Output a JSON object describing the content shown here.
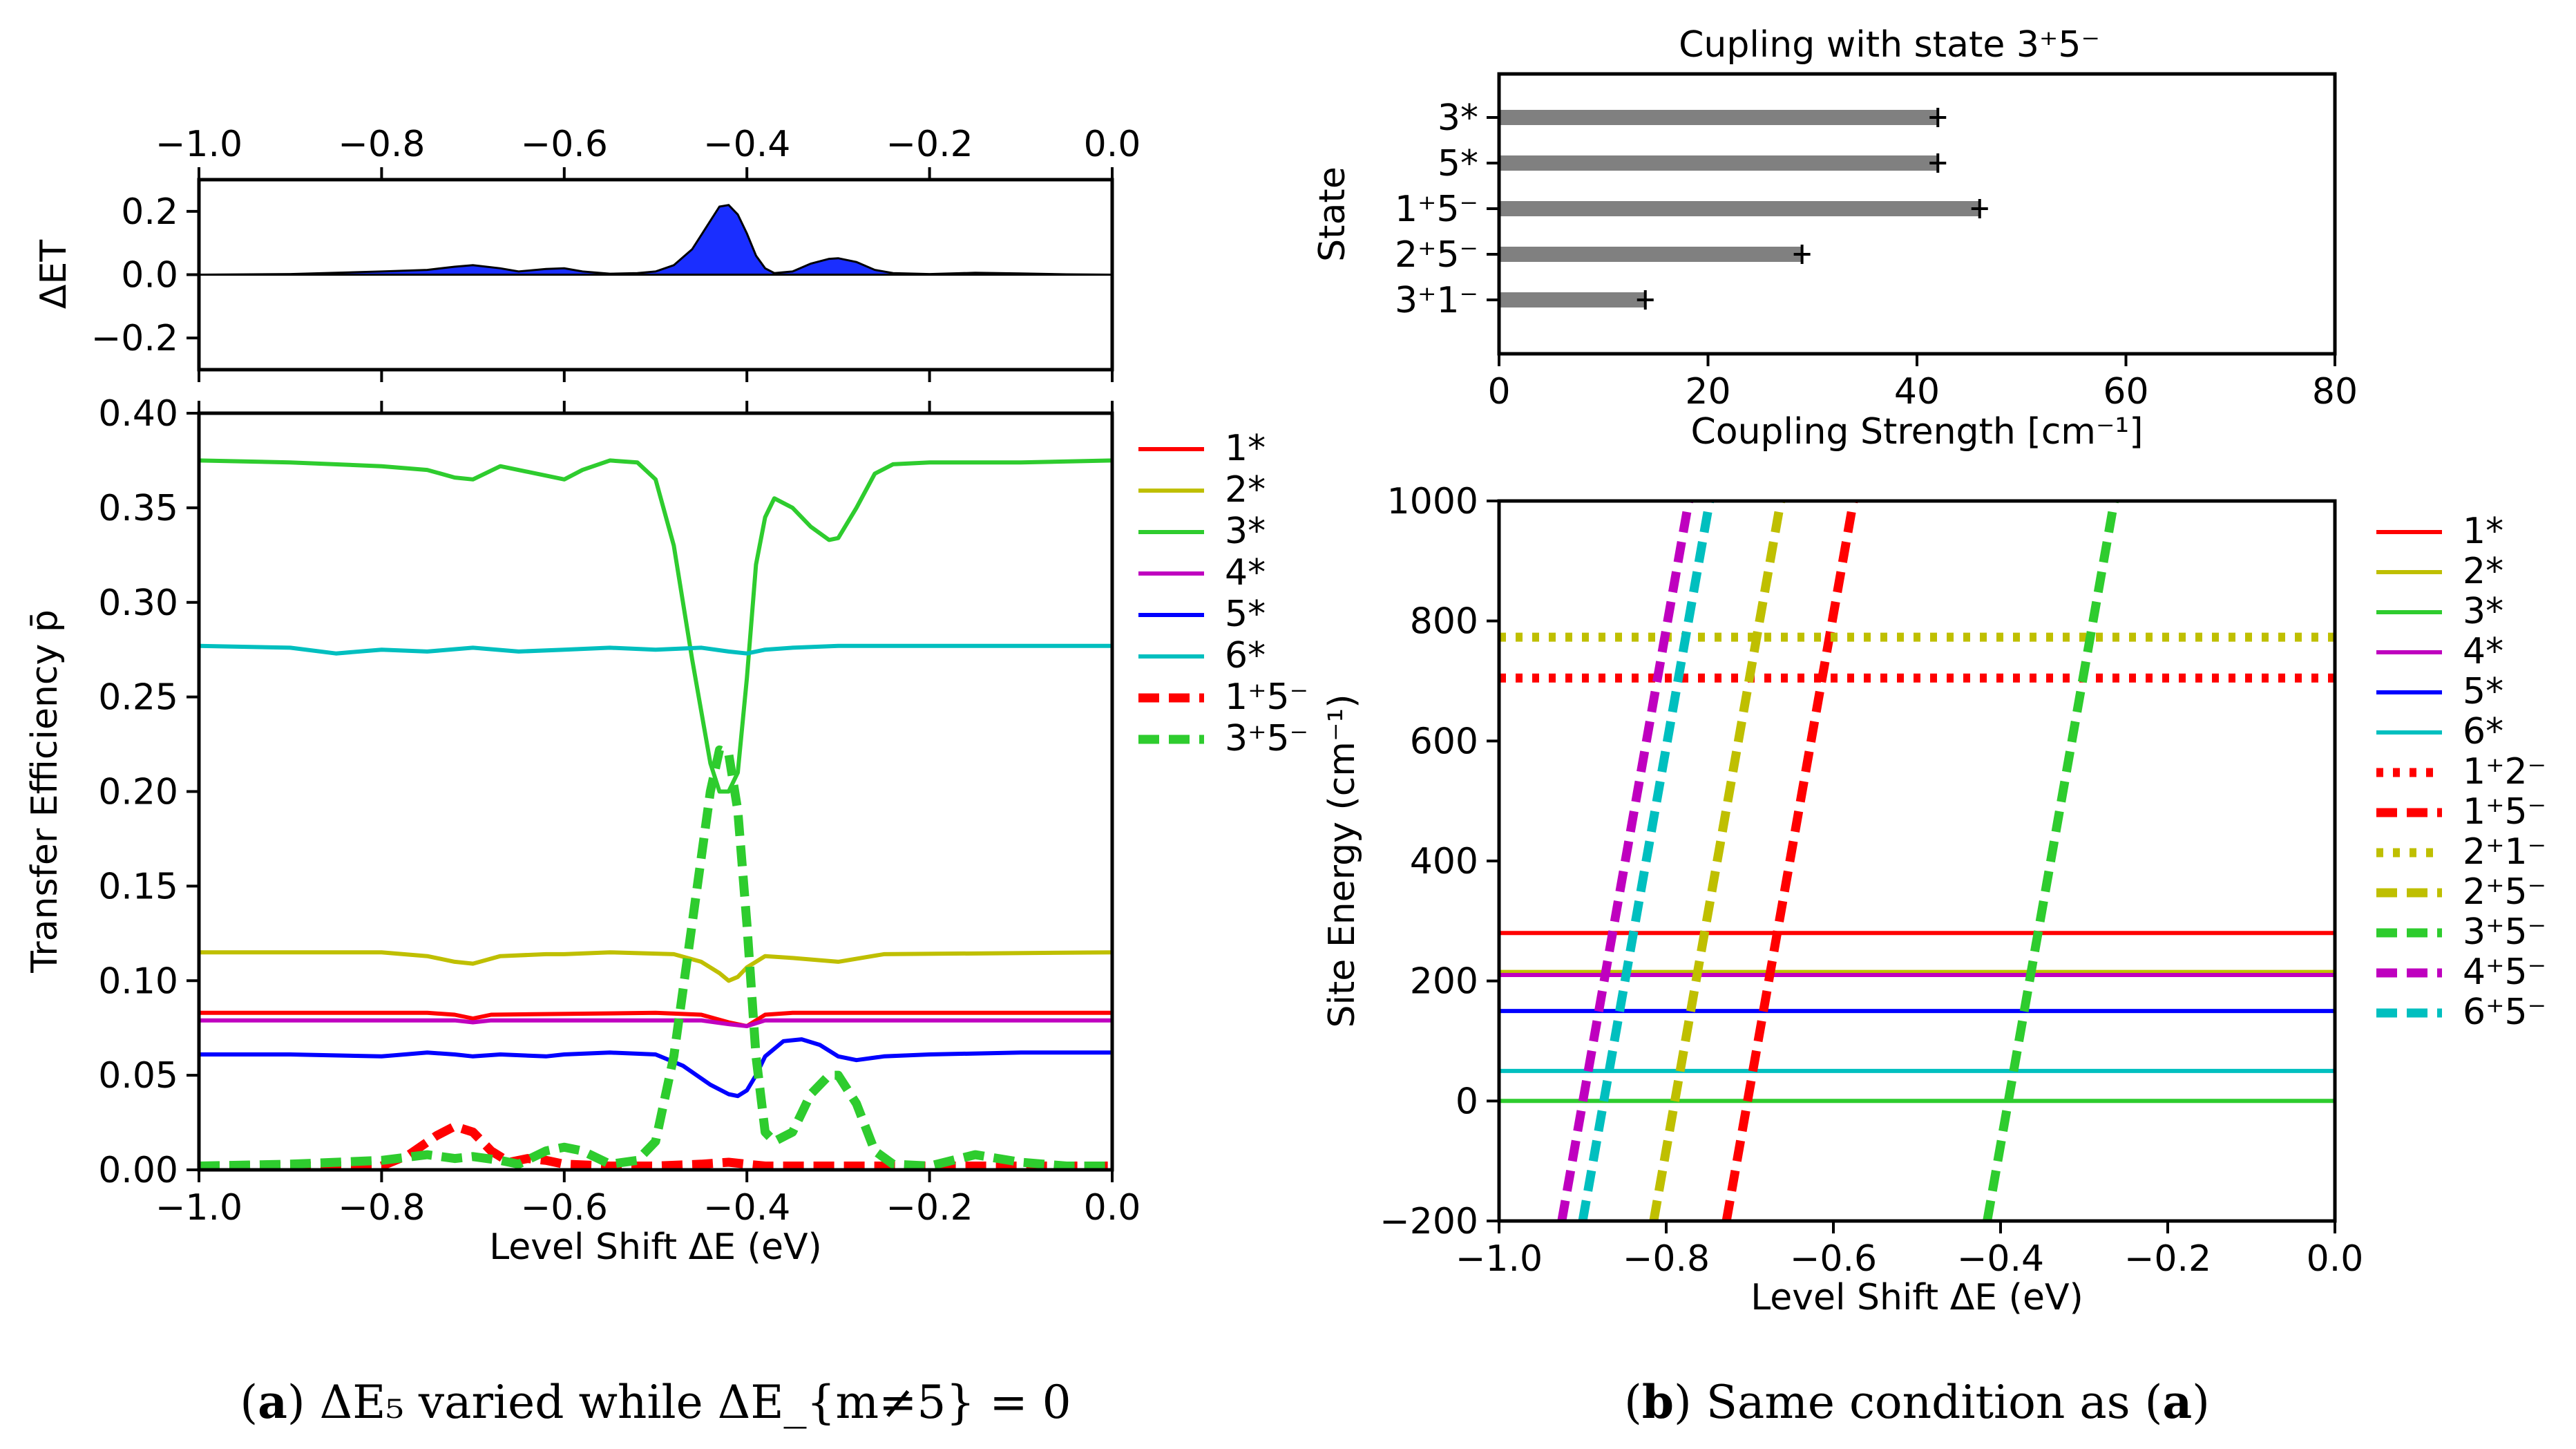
{
  "captions": {
    "a": {
      "label": "a",
      "pre": "(",
      "mid": ") ",
      "text": "ΔE₅ varied while ΔE_{m≠5} = 0"
    },
    "b": {
      "label": "b",
      "pre": "(",
      "mid": ") Same condition as (",
      "ref": "a",
      "post": ")"
    }
  },
  "chart_data": [
    {
      "id": "a-top",
      "type": "area",
      "ylabel": "ΔET",
      "xlim": [
        -1.0,
        0.0
      ],
      "ylim": [
        -0.3,
        0.3
      ],
      "xticks": [
        "−1.0",
        "−0.8",
        "−0.6",
        "−0.4",
        "−0.2",
        "0.0"
      ],
      "yticks": [
        "0.2",
        "0.0",
        "−0.2"
      ],
      "color": "#1a2eff",
      "x": [
        -1.0,
        -0.9,
        -0.8,
        -0.75,
        -0.72,
        -0.7,
        -0.67,
        -0.65,
        -0.62,
        -0.6,
        -0.58,
        -0.55,
        -0.52,
        -0.5,
        -0.48,
        -0.46,
        -0.44,
        -0.43,
        -0.42,
        -0.41,
        -0.4,
        -0.39,
        -0.38,
        -0.37,
        -0.35,
        -0.33,
        -0.31,
        -0.3,
        -0.28,
        -0.26,
        -0.24,
        -0.2,
        -0.15,
        -0.1,
        -0.05,
        0.0
      ],
      "values": [
        0.0,
        0.002,
        0.01,
        0.015,
        0.025,
        0.03,
        0.02,
        0.01,
        0.018,
        0.02,
        0.01,
        0.003,
        0.005,
        0.01,
        0.03,
        0.08,
        0.17,
        0.215,
        0.22,
        0.19,
        0.13,
        0.06,
        0.02,
        0.005,
        0.01,
        0.035,
        0.05,
        0.052,
        0.04,
        0.015,
        0.005,
        0.002,
        0.006,
        0.004,
        0.001,
        0.0
      ]
    },
    {
      "id": "a-main",
      "type": "line",
      "ylabel": "Transfer Efficiency p̄",
      "xlabel": "Level Shift ΔE (eV)",
      "xlim": [
        -1.0,
        0.0
      ],
      "ylim": [
        0.0,
        0.4
      ],
      "xticks": [
        "−1.0",
        "−0.8",
        "−0.6",
        "−0.4",
        "−0.2",
        "0.0"
      ],
      "yticks": [
        "0.00",
        "0.05",
        "0.10",
        "0.15",
        "0.20",
        "0.25",
        "0.30",
        "0.35",
        "0.40"
      ],
      "legend": "right-outside",
      "series": [
        {
          "name": "1*",
          "color": "#ff0000",
          "dash": "solid",
          "x": [
            -1.0,
            -0.75,
            -0.72,
            -0.7,
            -0.68,
            -0.5,
            -0.45,
            -0.42,
            -0.4,
            -0.38,
            -0.35,
            0.0
          ],
          "y": [
            0.083,
            0.083,
            0.082,
            0.08,
            0.082,
            0.083,
            0.082,
            0.078,
            0.076,
            0.082,
            0.083,
            0.083
          ]
        },
        {
          "name": "2*",
          "color": "#bfbf00",
          "dash": "solid",
          "x": [
            -1.0,
            -0.8,
            -0.75,
            -0.72,
            -0.7,
            -0.67,
            -0.62,
            -0.6,
            -0.55,
            -0.48,
            -0.45,
            -0.43,
            -0.42,
            -0.41,
            -0.4,
            -0.38,
            -0.35,
            -0.3,
            -0.25,
            0.0
          ],
          "y": [
            0.115,
            0.115,
            0.113,
            0.11,
            0.109,
            0.113,
            0.114,
            0.114,
            0.115,
            0.114,
            0.11,
            0.104,
            0.1,
            0.102,
            0.107,
            0.113,
            0.112,
            0.11,
            0.114,
            0.115
          ]
        },
        {
          "name": "3*",
          "color": "#2ecc2e",
          "dash": "solid",
          "x": [
            -1.0,
            -0.9,
            -0.8,
            -0.75,
            -0.72,
            -0.7,
            -0.67,
            -0.62,
            -0.6,
            -0.58,
            -0.55,
            -0.52,
            -0.5,
            -0.48,
            -0.46,
            -0.44,
            -0.43,
            -0.42,
            -0.41,
            -0.4,
            -0.39,
            -0.38,
            -0.37,
            -0.35,
            -0.33,
            -0.31,
            -0.3,
            -0.28,
            -0.26,
            -0.24,
            -0.2,
            -0.1,
            0.0
          ],
          "y": [
            0.375,
            0.374,
            0.372,
            0.37,
            0.366,
            0.365,
            0.372,
            0.367,
            0.365,
            0.37,
            0.375,
            0.374,
            0.365,
            0.33,
            0.27,
            0.215,
            0.2,
            0.2,
            0.21,
            0.26,
            0.32,
            0.345,
            0.355,
            0.35,
            0.34,
            0.333,
            0.334,
            0.35,
            0.368,
            0.373,
            0.374,
            0.374,
            0.375
          ]
        },
        {
          "name": "4*",
          "color": "#bf00bf",
          "dash": "solid",
          "x": [
            -1.0,
            -0.72,
            -0.7,
            -0.68,
            -0.5,
            -0.45,
            -0.42,
            -0.4,
            -0.38,
            0.0
          ],
          "y": [
            0.079,
            0.079,
            0.078,
            0.079,
            0.079,
            0.079,
            0.077,
            0.076,
            0.079,
            0.079
          ]
        },
        {
          "name": "5*",
          "color": "#0000ff",
          "dash": "solid",
          "x": [
            -1.0,
            -0.9,
            -0.8,
            -0.75,
            -0.72,
            -0.7,
            -0.67,
            -0.62,
            -0.6,
            -0.55,
            -0.5,
            -0.47,
            -0.44,
            -0.42,
            -0.41,
            -0.4,
            -0.39,
            -0.38,
            -0.36,
            -0.34,
            -0.32,
            -0.3,
            -0.28,
            -0.25,
            -0.2,
            -0.1,
            0.0
          ],
          "y": [
            0.061,
            0.061,
            0.06,
            0.062,
            0.061,
            0.06,
            0.061,
            0.06,
            0.061,
            0.062,
            0.061,
            0.055,
            0.045,
            0.04,
            0.039,
            0.042,
            0.05,
            0.06,
            0.068,
            0.069,
            0.066,
            0.06,
            0.058,
            0.06,
            0.061,
            0.062,
            0.062
          ]
        },
        {
          "name": "6*",
          "color": "#00bfbf",
          "dash": "solid",
          "x": [
            -1.0,
            -0.9,
            -0.85,
            -0.8,
            -0.75,
            -0.7,
            -0.65,
            -0.6,
            -0.55,
            -0.5,
            -0.45,
            -0.42,
            -0.4,
            -0.38,
            -0.35,
            -0.3,
            -0.2,
            0.0
          ],
          "y": [
            0.277,
            0.276,
            0.273,
            0.275,
            0.274,
            0.276,
            0.274,
            0.275,
            0.276,
            0.275,
            0.276,
            0.274,
            0.273,
            0.275,
            0.276,
            0.277,
            0.277,
            0.277
          ]
        },
        {
          "name": "1⁺5⁻",
          "color": "#ff0000",
          "dash": "dashed",
          "x": [
            -1.0,
            -0.8,
            -0.77,
            -0.74,
            -0.72,
            -0.7,
            -0.68,
            -0.66,
            -0.64,
            -0.62,
            -0.6,
            -0.55,
            -0.5,
            -0.45,
            -0.42,
            -0.4,
            -0.38,
            -0.35,
            -0.3,
            -0.25,
            -0.2,
            0.0
          ],
          "y": [
            0.002,
            0.002,
            0.008,
            0.018,
            0.023,
            0.02,
            0.01,
            0.004,
            0.006,
            0.005,
            0.003,
            0.002,
            0.002,
            0.003,
            0.004,
            0.003,
            0.002,
            0.002,
            0.002,
            0.002,
            0.002,
            0.002
          ]
        },
        {
          "name": "3⁺5⁻",
          "color": "#2ecc2e",
          "dash": "dashed",
          "x": [
            -1.0,
            -0.9,
            -0.8,
            -0.75,
            -0.72,
            -0.7,
            -0.67,
            -0.65,
            -0.62,
            -0.6,
            -0.58,
            -0.55,
            -0.52,
            -0.5,
            -0.48,
            -0.46,
            -0.44,
            -0.43,
            -0.42,
            -0.41,
            -0.4,
            -0.39,
            -0.38,
            -0.37,
            -0.35,
            -0.33,
            -0.31,
            -0.3,
            -0.28,
            -0.26,
            -0.24,
            -0.2,
            -0.15,
            -0.1,
            -0.05,
            0.0
          ],
          "y": [
            0.002,
            0.003,
            0.005,
            0.008,
            0.006,
            0.007,
            0.005,
            0.003,
            0.01,
            0.012,
            0.01,
            0.003,
            0.005,
            0.015,
            0.06,
            0.13,
            0.2,
            0.222,
            0.22,
            0.19,
            0.13,
            0.06,
            0.02,
            0.015,
            0.02,
            0.04,
            0.05,
            0.05,
            0.035,
            0.01,
            0.003,
            0.002,
            0.008,
            0.004,
            0.002,
            0.002
          ]
        }
      ]
    },
    {
      "id": "b-top",
      "type": "bar",
      "orientation": "horizontal",
      "title": "Cupling with state 3⁺5⁻",
      "ylabel": "State",
      "xlabel": "Coupling Strength [cm⁻¹]",
      "xlim": [
        0,
        80
      ],
      "xticks": [
        "0",
        "20",
        "40",
        "60",
        "80"
      ],
      "categories": [
        "3*",
        "5*",
        "1⁺5⁻",
        "2⁺5⁻",
        "3⁺1⁻"
      ],
      "values": [
        42,
        42,
        46,
        29,
        14
      ],
      "color": "#808080"
    },
    {
      "id": "b-main",
      "type": "line",
      "ylabel": "Site Energy (cm⁻¹)",
      "xlabel": "Level Shift ΔE (eV)",
      "xlim": [
        -1.0,
        0.0
      ],
      "ylim": [
        -200,
        1000
      ],
      "xticks": [
        "−1.0",
        "−0.8",
        "−0.6",
        "−0.4",
        "−0.2",
        "0.0"
      ],
      "yticks": [
        "−200",
        "0",
        "200",
        "400",
        "600",
        "800",
        "1000"
      ],
      "legend": "right-outside",
      "series": [
        {
          "name": "1*",
          "color": "#ff0000",
          "dash": "solid",
          "x": [
            -1.0,
            0.0
          ],
          "y": [
            280,
            280
          ]
        },
        {
          "name": "2*",
          "color": "#bfbf00",
          "dash": "solid",
          "x": [
            -1.0,
            0.0
          ],
          "y": [
            215,
            215
          ]
        },
        {
          "name": "3*",
          "color": "#2ecc2e",
          "dash": "solid",
          "x": [
            -1.0,
            0.0
          ],
          "y": [
            0,
            0
          ]
        },
        {
          "name": "4*",
          "color": "#bf00bf",
          "dash": "solid",
          "x": [
            -1.0,
            0.0
          ],
          "y": [
            210,
            210
          ]
        },
        {
          "name": "5*",
          "color": "#0000ff",
          "dash": "solid",
          "x": [
            -1.0,
            0.0
          ],
          "y": [
            150,
            150
          ]
        },
        {
          "name": "6*",
          "color": "#00bfbf",
          "dash": "solid",
          "x": [
            -1.0,
            0.0
          ],
          "y": [
            50,
            50
          ]
        },
        {
          "name": "1⁺2⁻",
          "color": "#ff0000",
          "dash": "dotted",
          "x": [
            -1.0,
            0.0
          ],
          "y": [
            705,
            705
          ]
        },
        {
          "name": "1⁺5⁻",
          "color": "#ff0000",
          "dash": "dashed",
          "x": [
            -0.728,
            -0.576
          ],
          "y": [
            -200,
            1000
          ]
        },
        {
          "name": "2⁺1⁻",
          "color": "#bfbf00",
          "dash": "dotted",
          "x": [
            -1.0,
            0.0
          ],
          "y": [
            773,
            773
          ]
        },
        {
          "name": "2⁺5⁻",
          "color": "#bfbf00",
          "dash": "dashed",
          "x": [
            -0.815,
            -0.663
          ],
          "y": [
            -200,
            1000
          ]
        },
        {
          "name": "3⁺5⁻",
          "color": "#2ecc2e",
          "dash": "dashed",
          "x": [
            -0.416,
            -0.264
          ],
          "y": [
            -200,
            1000
          ]
        },
        {
          "name": "4⁺5⁻",
          "color": "#bf00bf",
          "dash": "dashed",
          "x": [
            -0.925,
            -0.773
          ],
          "y": [
            -200,
            1000
          ]
        },
        {
          "name": "6⁺5⁻",
          "color": "#00bfbf",
          "dash": "dashed",
          "x": [
            -0.9,
            -0.748
          ],
          "y": [
            -200,
            1000
          ]
        }
      ]
    }
  ]
}
